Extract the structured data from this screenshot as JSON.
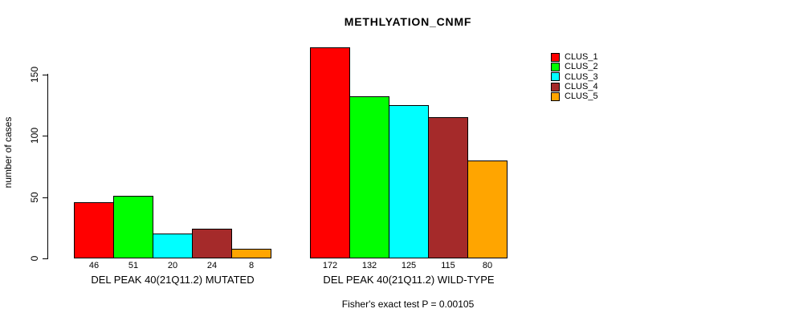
{
  "chart_data": {
    "type": "bar",
    "title": "METHLYATION_CNMF",
    "ylabel": "number of cases",
    "xlabel": "",
    "yticks": [
      0,
      50,
      100,
      150
    ],
    "ylim": [
      0,
      172
    ],
    "grid": false,
    "bar_value_labels": true,
    "legend_position": "right",
    "series_colors": [
      "#FF0000",
      "#00FF00",
      "#00FFFF",
      "#A52A2A",
      "#FFA500"
    ],
    "legend": {
      "entries": [
        {
          "label": "CLUS_1",
          "color": "#FF0000"
        },
        {
          "label": "CLUS_2",
          "color": "#00FF00"
        },
        {
          "label": "CLUS_3",
          "color": "#00FFFF"
        },
        {
          "label": "CLUS_4",
          "color": "#A52A2A"
        },
        {
          "label": "CLUS_5",
          "color": "#FFA500"
        }
      ]
    },
    "groups": [
      {
        "label": "DEL PEAK 40(21Q11.2) MUTATED",
        "values": [
          46,
          51,
          20,
          24,
          8
        ]
      },
      {
        "label": "DEL PEAK 40(21Q11.2) WILD-TYPE",
        "values": [
          172,
          132,
          125,
          115,
          80
        ]
      }
    ],
    "footnote": "Fisher's exact test P = 0.00105"
  }
}
